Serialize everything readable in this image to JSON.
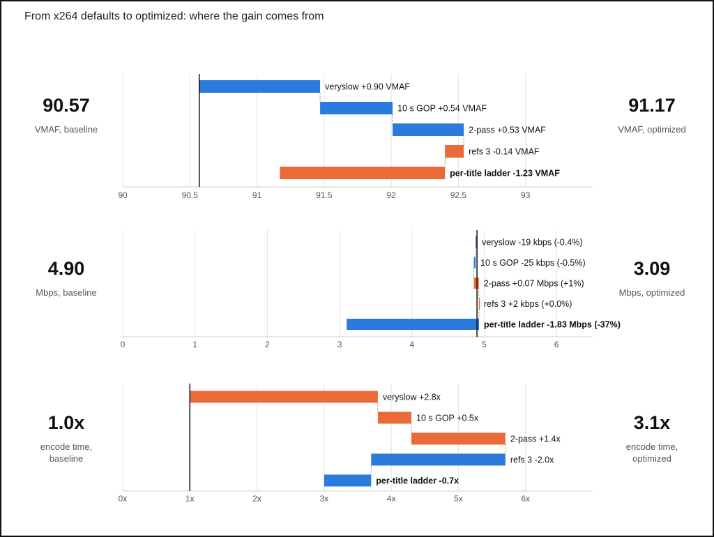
{
  "title": "From x264 defaults to optimized: where the gain comes from",
  "colors": {
    "increase": "#2b7bdc",
    "decrease": "#eb6a3a",
    "grid": "#e3e3e3",
    "axis": "#cfcfcf",
    "baseline": "#111111"
  },
  "chart_data": [
    {
      "type": "bar",
      "subtype": "waterfall",
      "baseline": 90.57,
      "baseline_value": "90.57",
      "baseline_label": "VMAF, baseline",
      "optimized_value": "91.17",
      "optimized_label": "VMAF, optimized",
      "xlim": [
        90,
        93.5
      ],
      "ticks": [
        90,
        90.5,
        91,
        91.5,
        92,
        92.5,
        93
      ],
      "tick_labels": [
        "90",
        "90.5",
        "91",
        "91.5",
        "92",
        "92.5",
        "93"
      ],
      "steps": [
        {
          "name": "veryslow",
          "delta": 0.9,
          "label": "veryslow  +0.90 VMAF",
          "color": "increase"
        },
        {
          "name": "10 s GOP",
          "delta": 0.54,
          "label": "10 s GOP  +0.54 VMAF",
          "color": "increase"
        },
        {
          "name": "2-pass",
          "delta": 0.53,
          "label": "2-pass  +0.53 VMAF",
          "color": "increase"
        },
        {
          "name": "refs 3",
          "delta": -0.14,
          "label": "refs 3  -0.14 VMAF",
          "color": "decrease"
        },
        {
          "name": "per-title ladder",
          "delta": -1.23,
          "label": "per-title ladder  -1.23 VMAF",
          "color": "decrease",
          "bold": true
        }
      ]
    },
    {
      "type": "bar",
      "subtype": "waterfall",
      "baseline": 4.9,
      "baseline_value": "4.90",
      "baseline_label": "Mbps, baseline",
      "optimized_value": "3.09",
      "optimized_label": "Mbps, optimized",
      "xlim": [
        0,
        6.5
      ],
      "ticks": [
        0,
        1,
        2,
        3,
        4,
        5,
        6
      ],
      "tick_labels": [
        "0",
        "1",
        "2",
        "3",
        "4",
        "5",
        "6"
      ],
      "steps": [
        {
          "name": "veryslow",
          "delta": -0.019,
          "label": "veryslow  -19 kbps (-0.4%)",
          "color": "increase"
        },
        {
          "name": "10 s GOP",
          "delta": -0.025,
          "label": "10 s GOP  -25 kbps (-0.5%)",
          "color": "increase"
        },
        {
          "name": "2-pass",
          "delta": 0.07,
          "label": "2-pass  +0.07 Mbps (+1%)",
          "color": "decrease"
        },
        {
          "name": "refs 3",
          "delta": 0.002,
          "label": "refs 3  +2 kbps (+0.0%)",
          "color": "decrease"
        },
        {
          "name": "per-title ladder",
          "delta": -1.83,
          "label": "per-title ladder  -1.83 Mbps (-37%)",
          "color": "increase",
          "bold": true
        }
      ]
    },
    {
      "type": "bar",
      "subtype": "waterfall",
      "baseline": 1.0,
      "baseline_value": "1.0x",
      "baseline_label": "encode time,\nbaseline",
      "optimized_value": "3.1x",
      "optimized_label": "encode time,\noptimized",
      "xlim": [
        0,
        7
      ],
      "ticks": [
        0,
        1,
        2,
        3,
        4,
        5,
        6
      ],
      "tick_labels": [
        "0x",
        "1x",
        "2x",
        "3x",
        "4x",
        "5x",
        "6x"
      ],
      "steps": [
        {
          "name": "veryslow",
          "delta": 2.8,
          "label": "veryslow  +2.8x",
          "color": "decrease"
        },
        {
          "name": "10 s GOP",
          "delta": 0.5,
          "label": "10 s GOP  +0.5x",
          "color": "decrease"
        },
        {
          "name": "2-pass",
          "delta": 1.4,
          "label": "2-pass  +1.4x",
          "color": "decrease"
        },
        {
          "name": "refs 3",
          "delta": -2.0,
          "label": "refs 3  -2.0x",
          "color": "increase"
        },
        {
          "name": "per-title ladder",
          "delta": -0.7,
          "label": "per-title ladder  -0.7x",
          "color": "increase",
          "bold": true
        }
      ]
    }
  ]
}
